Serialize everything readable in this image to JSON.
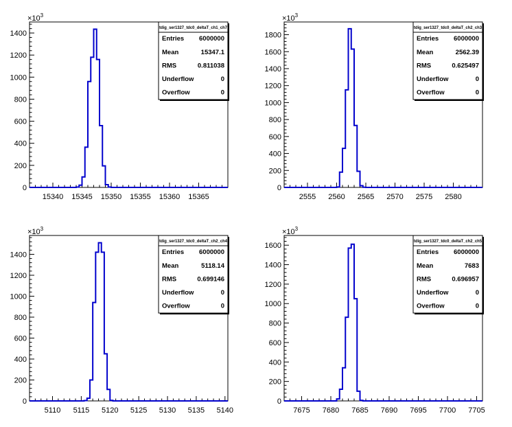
{
  "chart_data": [
    {
      "type": "histogram",
      "title": "tdig_ser1327_tdc0_deltaT_ch1_ch7",
      "xlim": [
        15336,
        15370
      ],
      "ylim": [
        0,
        1500
      ],
      "y_exponent_label": "×10",
      "y_exponent": "3",
      "xticks": [
        15340,
        15345,
        15350,
        15355,
        15360,
        15365
      ],
      "yticks": [
        0,
        200,
        400,
        600,
        800,
        1000,
        1200,
        1400
      ],
      "bins": {
        "x": [
          15344.0,
          15344.5,
          15345.0,
          15345.5,
          15346.0,
          15346.5,
          15347.0,
          15347.5,
          15348.0,
          15348.5,
          15349.0,
          15349.5,
          15350.0,
          15350.5
        ],
        "values": [
          3,
          20,
          95,
          365,
          960,
          1180,
          1435,
          1160,
          560,
          195,
          25,
          3,
          0,
          0
        ]
      },
      "stats": {
        "rows": [
          {
            "label": "Entries",
            "value": "6000000"
          },
          {
            "label": "Mean",
            "value": "15347.1"
          },
          {
            "label": "RMS",
            "value": "0.811038"
          },
          {
            "label": "Underflow",
            "value": "0"
          },
          {
            "label": "Overflow",
            "value": "0"
          }
        ]
      }
    },
    {
      "type": "histogram",
      "title": "tdig_ser1327_tdc0_deltaT_ch2_ch3",
      "xlim": [
        2551,
        2585
      ],
      "ylim": [
        0,
        1950
      ],
      "y_exponent_label": "×10",
      "y_exponent": "3",
      "xticks": [
        2555,
        2560,
        2565,
        2570,
        2575,
        2580
      ],
      "yticks": [
        0,
        200,
        400,
        600,
        800,
        1000,
        1200,
        1400,
        1600,
        1800
      ],
      "bins": {
        "x": [
          2560.0,
          2560.5,
          2561.0,
          2561.5,
          2562.0,
          2562.5,
          2563.0,
          2563.5,
          2564.0,
          2564.5
        ],
        "values": [
          5,
          180,
          460,
          1150,
          1870,
          1630,
          730,
          190,
          20,
          2
        ]
      },
      "stats": {
        "rows": [
          {
            "label": "Entries",
            "value": "6000000"
          },
          {
            "label": "Mean",
            "value": "2562.39"
          },
          {
            "label": "RMS",
            "value": "0.625497"
          },
          {
            "label": "Underflow",
            "value": "0"
          },
          {
            "label": "Overflow",
            "value": "0"
          }
        ]
      }
    },
    {
      "type": "histogram",
      "title": "tdig_ser1327_tdc0_deltaT_ch2_ch4",
      "xlim": [
        5106,
        5140.5
      ],
      "ylim": [
        0,
        1580
      ],
      "y_exponent_label": "×10",
      "y_exponent": "3",
      "xticks": [
        5110,
        5115,
        5120,
        5125,
        5130,
        5135,
        5140
      ],
      "yticks": [
        0,
        200,
        400,
        600,
        800,
        1000,
        1200,
        1400
      ],
      "bins": {
        "x": [
          5115.5,
          5116.0,
          5116.5,
          5117.0,
          5117.5,
          5118.0,
          5118.5,
          5119.0,
          5119.5,
          5120.0
        ],
        "values": [
          3,
          25,
          200,
          940,
          1420,
          1510,
          1420,
          450,
          110,
          5
        ]
      },
      "stats": {
        "rows": [
          {
            "label": "Entries",
            "value": "6000000"
          },
          {
            "label": "Mean",
            "value": "5118.14"
          },
          {
            "label": "RMS",
            "value": "0.699146"
          },
          {
            "label": "Underflow",
            "value": "0"
          },
          {
            "label": "Overflow",
            "value": "0"
          }
        ]
      }
    },
    {
      "type": "histogram",
      "title": "tdig_ser1327_tdc0_deltaT_ch2_ch5",
      "xlim": [
        7672,
        7706
      ],
      "ylim": [
        0,
        1700
      ],
      "y_exponent_label": "×10",
      "y_exponent": "3",
      "xticks": [
        7675,
        7680,
        7685,
        7690,
        7695,
        7700,
        7705
      ],
      "yticks": [
        0,
        200,
        400,
        600,
        800,
        1000,
        1200,
        1400,
        1600
      ],
      "bins": {
        "x": [
          7681.0,
          7681.5,
          7682.0,
          7682.5,
          7683.0,
          7683.5,
          7684.0,
          7684.5,
          7685.0
        ],
        "values": [
          20,
          120,
          340,
          860,
          1570,
          1610,
          1050,
          100,
          5
        ]
      },
      "stats": {
        "rows": [
          {
            "label": "Entries",
            "value": "6000000"
          },
          {
            "label": "Mean",
            "value": "7683"
          },
          {
            "label": "RMS",
            "value": "0.696957"
          },
          {
            "label": "Underflow",
            "value": "0"
          },
          {
            "label": "Overflow",
            "value": "0"
          }
        ]
      }
    }
  ]
}
